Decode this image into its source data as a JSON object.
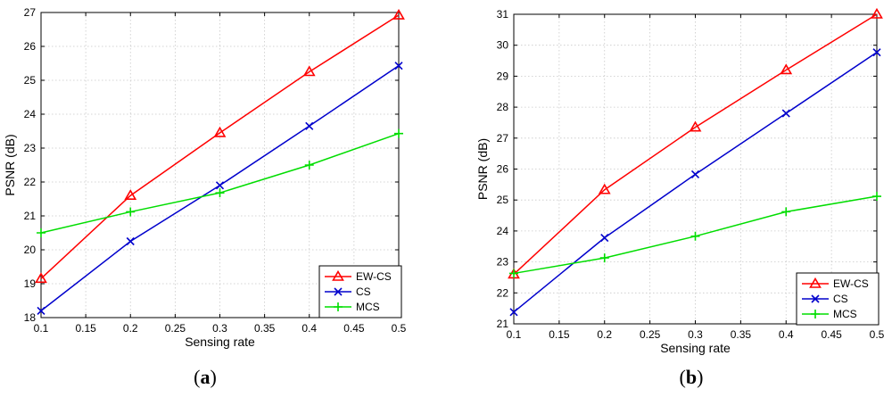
{
  "chart_data": [
    {
      "type": "line",
      "panel_label": "a",
      "xlabel": "Sensing rate",
      "ylabel": "PSNR (dB)",
      "x": [
        0.1,
        0.2,
        0.3,
        0.4,
        0.5
      ],
      "xlim": [
        0.1,
        0.5
      ],
      "ylim": [
        18,
        27
      ],
      "xticks": [
        "0.1",
        "0.15",
        "0.2",
        "0.25",
        "0.3",
        "0.35",
        "0.4",
        "0.45",
        "0.5"
      ],
      "yticks": [
        "18",
        "19",
        "20",
        "21",
        "22",
        "23",
        "24",
        "25",
        "26",
        "27"
      ],
      "grid": true,
      "legend_position": "bottom-right",
      "series": [
        {
          "name": "EW-CS",
          "color": "#ff0000",
          "marker": "triangle",
          "values": [
            19.15,
            21.6,
            23.45,
            25.25,
            26.92
          ]
        },
        {
          "name": "CS",
          "color": "#0000cc",
          "marker": "x",
          "values": [
            18.2,
            20.25,
            21.9,
            23.65,
            25.43
          ]
        },
        {
          "name": "MCS",
          "color": "#00dd00",
          "marker": "plus",
          "values": [
            20.5,
            21.12,
            21.68,
            22.5,
            23.43
          ]
        }
      ]
    },
    {
      "type": "line",
      "panel_label": "b",
      "xlabel": "Sensing rate",
      "ylabel": "PSNR (dB)",
      "x": [
        0.1,
        0.2,
        0.3,
        0.4,
        0.5
      ],
      "xlim": [
        0.1,
        0.5
      ],
      "ylim": [
        21,
        31
      ],
      "xticks": [
        "0.1",
        "0.15",
        "0.2",
        "0.25",
        "0.3",
        "0.35",
        "0.4",
        "0.45",
        "0.5"
      ],
      "yticks": [
        "21",
        "22",
        "23",
        "24",
        "25",
        "26",
        "27",
        "28",
        "29",
        "30",
        "31"
      ],
      "grid": true,
      "legend_position": "bottom-right",
      "series": [
        {
          "name": "EW-CS",
          "color": "#ff0000",
          "marker": "triangle",
          "values": [
            22.6,
            25.33,
            27.35,
            29.2,
            31.0
          ]
        },
        {
          "name": "CS",
          "color": "#0000cc",
          "marker": "x",
          "values": [
            21.38,
            23.78,
            25.83,
            27.8,
            29.77
          ]
        },
        {
          "name": "MCS",
          "color": "#00dd00",
          "marker": "plus",
          "values": [
            22.63,
            23.13,
            23.83,
            24.62,
            25.12
          ]
        }
      ]
    }
  ]
}
